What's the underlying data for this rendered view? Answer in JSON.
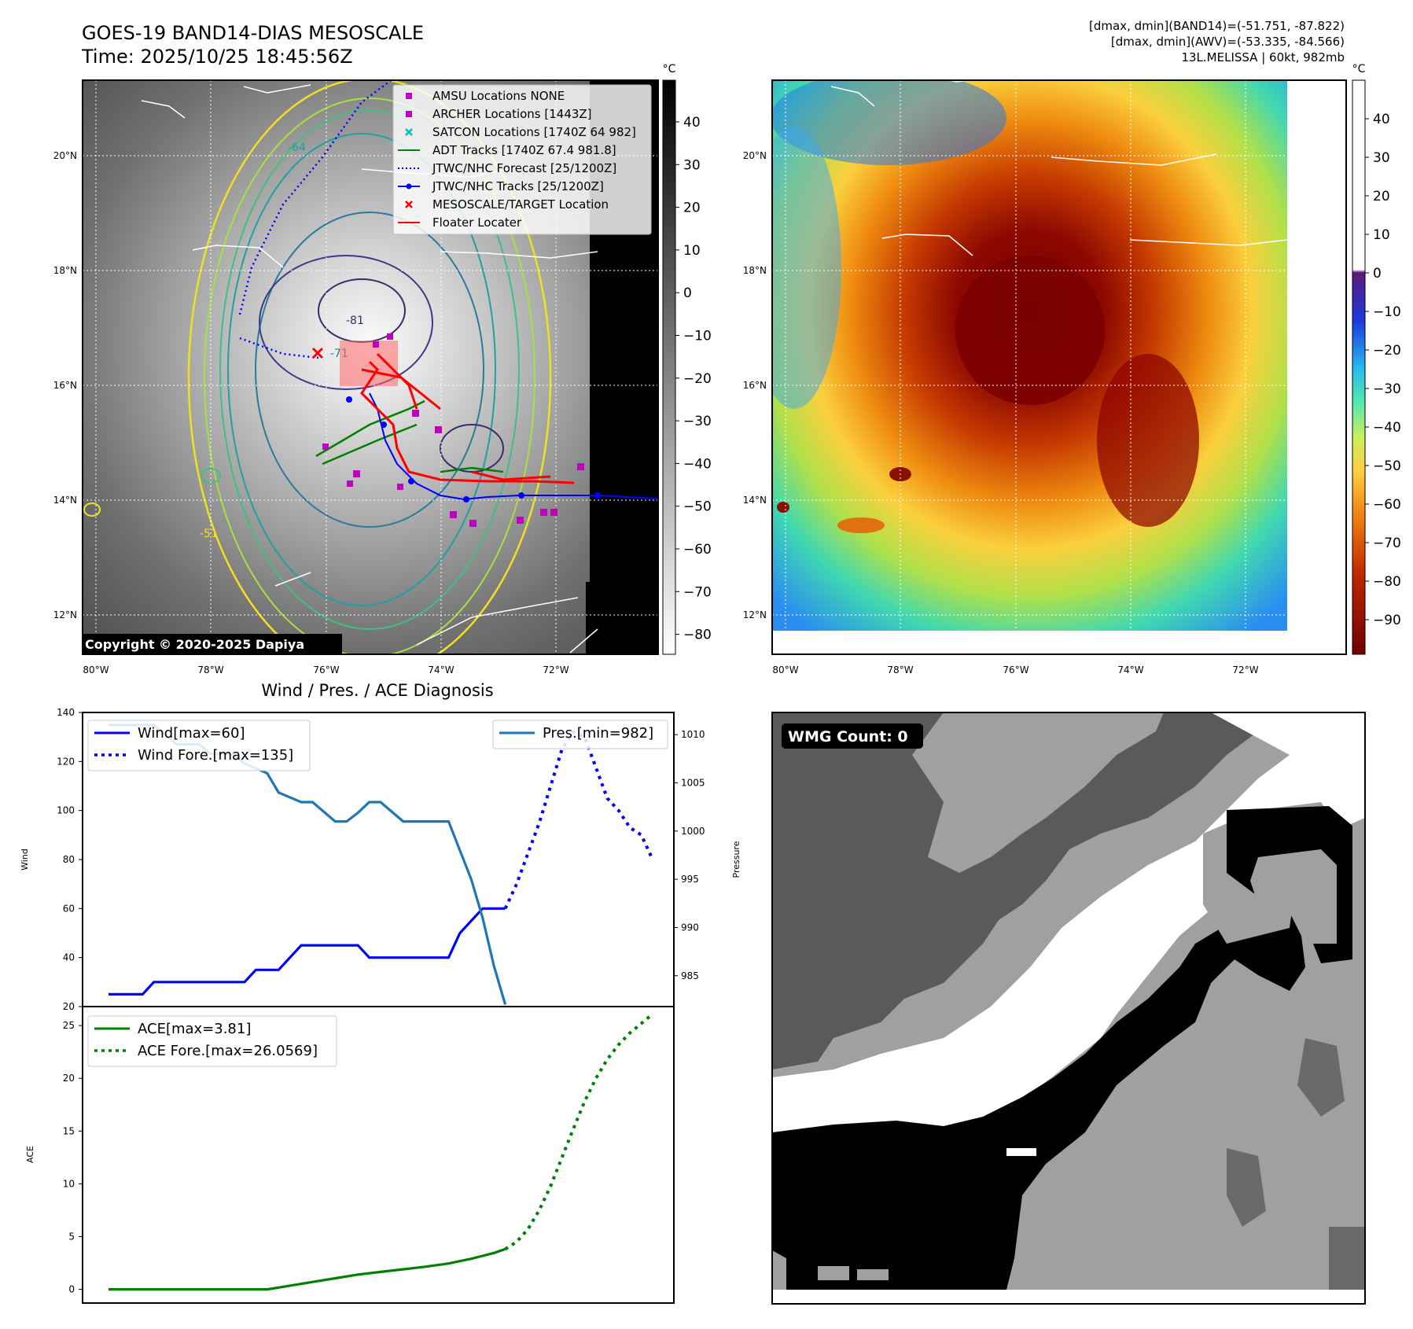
{
  "header": {
    "title_line1": "GOES-19 BAND14-DIAS MESOSCALE",
    "title_line2": "Time: 2025/10/25 18:45:56Z",
    "info_line1": "[dmax, dmin](BAND14)=(-51.751, -87.822)",
    "info_line2": "[dmax, dmin](AWV)=(-53.335, -84.566)",
    "info_line3": "13L.MELISSA | 60kt, 982mb"
  },
  "maps": {
    "lon_labels": [
      "80°W",
      "78°W",
      "76°W",
      "74°W",
      "72°W"
    ],
    "lat_labels": [
      "20°N",
      "18°N",
      "16°N",
      "14°N",
      "12°N"
    ],
    "copyright": "Copyright © 2020-2025 Dapiya",
    "contour_labels": [
      "-81",
      "-71",
      "-51",
      "-64"
    ],
    "legend": [
      {
        "label": "AMSU Locations NONE",
        "color": "#bf00bf",
        "marker": "square"
      },
      {
        "label": "ARCHER Locations [1443Z]",
        "color": "#bf00bf",
        "marker": "square"
      },
      {
        "label": "SATCON Locations [1740Z 64 982]",
        "color": "#00bfbf",
        "marker": "x"
      },
      {
        "label": "ADT Tracks [1740Z 67.4 981.8]",
        "color": "#008000",
        "marker": "line"
      },
      {
        "label": "JTWC/NHC Forecast [25/1200Z]",
        "color": "#0000ff",
        "marker": "dotted"
      },
      {
        "label": "JTWC/NHC Tracks [25/1200Z]",
        "color": "#0000ff",
        "marker": "line-dot"
      },
      {
        "label": "MESOSCALE/TARGET Location",
        "color": "#ff0000",
        "marker": "x"
      },
      {
        "label": "Floater Locater",
        "color": "#ff0000",
        "marker": "line"
      }
    ],
    "colorbar1": {
      "unit": "°C",
      "ticks": [
        "40",
        "30",
        "20",
        "10",
        "0",
        "−10",
        "−20",
        "−30",
        "−40",
        "−50",
        "−60",
        "−70",
        "−80"
      ]
    },
    "colorbar2": {
      "unit": "°C",
      "ticks": [
        "40",
        "30",
        "20",
        "10",
        "0",
        "−10",
        "−20",
        "−30",
        "−40",
        "−50",
        "−60",
        "−70",
        "−80",
        "−90"
      ]
    }
  },
  "wmg": {
    "label": "WMG Count: 0"
  },
  "chart_data": [
    {
      "type": "line",
      "title": "Wind / Pres. / ACE Diagnosis",
      "ylabel": "Wind",
      "ylim": [
        20,
        140
      ],
      "yticks": [
        20,
        40,
        60,
        80,
        100,
        120,
        140
      ],
      "y2label": "Pressure",
      "y2lim": [
        981.8,
        1012.3
      ],
      "y2ticks": [
        985,
        990,
        995,
        1000,
        1005,
        1010
      ],
      "xlim": [
        0,
        48
      ],
      "series": [
        {
          "name": "Wind[max=60]",
          "color": "#0000ff",
          "style": "solid",
          "axis": "left",
          "x": [
            0,
            3,
            4,
            7,
            12,
            13,
            15,
            16,
            17,
            18,
            21,
            22,
            23,
            25,
            26,
            27,
            28,
            30,
            31,
            32,
            33,
            34,
            35
          ],
          "y": [
            25,
            25,
            30,
            30,
            30,
            35,
            35,
            40,
            45,
            45,
            45,
            45,
            40,
            40,
            40,
            40,
            40,
            40,
            50,
            55,
            60,
            60,
            60
          ]
        },
        {
          "name": "Wind Fore.[max=135]",
          "color": "#0000ff",
          "style": "dotted",
          "axis": "left",
          "x": [
            35,
            36,
            38,
            40,
            41,
            42,
            44,
            45,
            46,
            47,
            48
          ],
          "y": [
            60,
            70,
            95,
            125,
            132,
            130,
            105,
            100,
            93,
            90,
            80
          ]
        },
        {
          "name": "Pres.[min=982]",
          "color": "#1f77b4",
          "style": "solid",
          "axis": "right",
          "x": [
            0,
            4,
            5,
            6,
            8,
            9,
            11,
            12,
            14,
            15,
            17,
            18,
            20,
            21,
            22,
            23,
            24,
            26,
            27,
            28,
            29,
            30,
            31,
            32,
            33,
            34,
            35
          ],
          "y": [
            1011,
            1011,
            1010,
            1009,
            1009,
            1008,
            1008,
            1007,
            1006,
            1004,
            1003,
            1003,
            1001,
            1001,
            1001.9,
            1003,
            1003,
            1001,
            1001,
            1001,
            1001,
            1001,
            998,
            995,
            991,
            986,
            982
          ]
        }
      ]
    },
    {
      "type": "line",
      "ylabel": "ACE",
      "ylim": [
        -1.3,
        26.8
      ],
      "yticks": [
        0,
        5,
        10,
        15,
        20,
        25
      ],
      "xlim": [
        0,
        48
      ],
      "series": [
        {
          "name": "ACE[max=3.81]",
          "color": "#008000",
          "style": "solid",
          "x": [
            0,
            14,
            16,
            18,
            20,
            22,
            24,
            26,
            28,
            30,
            32,
            34,
            35
          ],
          "y": [
            0,
            0,
            0.35,
            0.7,
            1.05,
            1.4,
            1.65,
            1.9,
            2.15,
            2.45,
            2.9,
            3.45,
            3.81
          ]
        },
        {
          "name": "ACE Fore.[max=26.0569]",
          "color": "#008000",
          "style": "dotted",
          "x": [
            35,
            36,
            37,
            38,
            39,
            40,
            41,
            42,
            43,
            44,
            45,
            46,
            47,
            48
          ],
          "y": [
            3.81,
            4.5,
            5.7,
            7.5,
            9.8,
            12.5,
            15.2,
            17.8,
            20,
            21.8,
            23.2,
            24.3,
            25.2,
            26.1
          ]
        }
      ]
    }
  ]
}
